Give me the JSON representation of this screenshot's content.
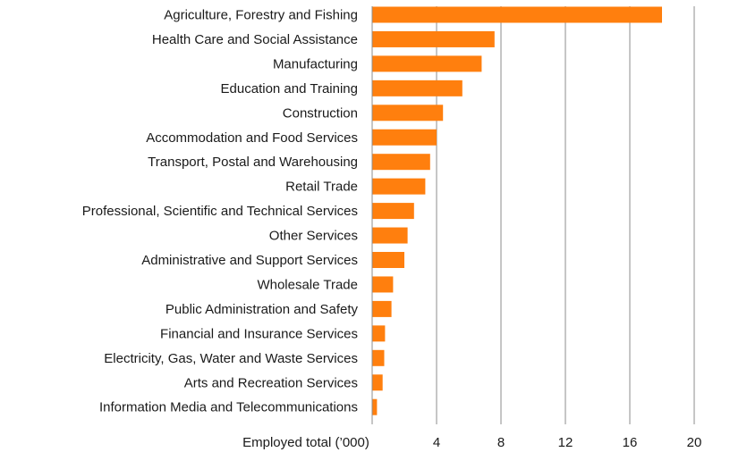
{
  "chart_data": {
    "type": "bar",
    "orientation": "horizontal",
    "title": "",
    "xlabel": "Employed total (’000)",
    "ylabel": "",
    "xlim": [
      0,
      20
    ],
    "xticks": [
      4,
      8,
      12,
      16,
      20
    ],
    "grid": "vertical",
    "bar_color": "#ff7f0e",
    "categories": [
      "Agriculture, Forestry and Fishing",
      "Health Care and Social Assistance",
      "Manufacturing",
      "Education and Training",
      "Construction",
      "Accommodation and Food Services",
      "Transport, Postal and Warehousing",
      "Retail Trade",
      "Professional, Scientific and Technical Services",
      "Other Services",
      "Administrative and Support Services",
      "Wholesale Trade",
      "Public Administration and Safety",
      "Financial and Insurance Services",
      "Electricity, Gas, Water and Waste Services",
      "Arts and Recreation Services",
      "Information Media and Telecommunications"
    ],
    "values": [
      18.0,
      7.6,
      6.8,
      5.6,
      4.4,
      4.0,
      3.6,
      3.3,
      2.6,
      2.2,
      2.0,
      1.3,
      1.2,
      0.8,
      0.75,
      0.65,
      0.3
    ]
  }
}
